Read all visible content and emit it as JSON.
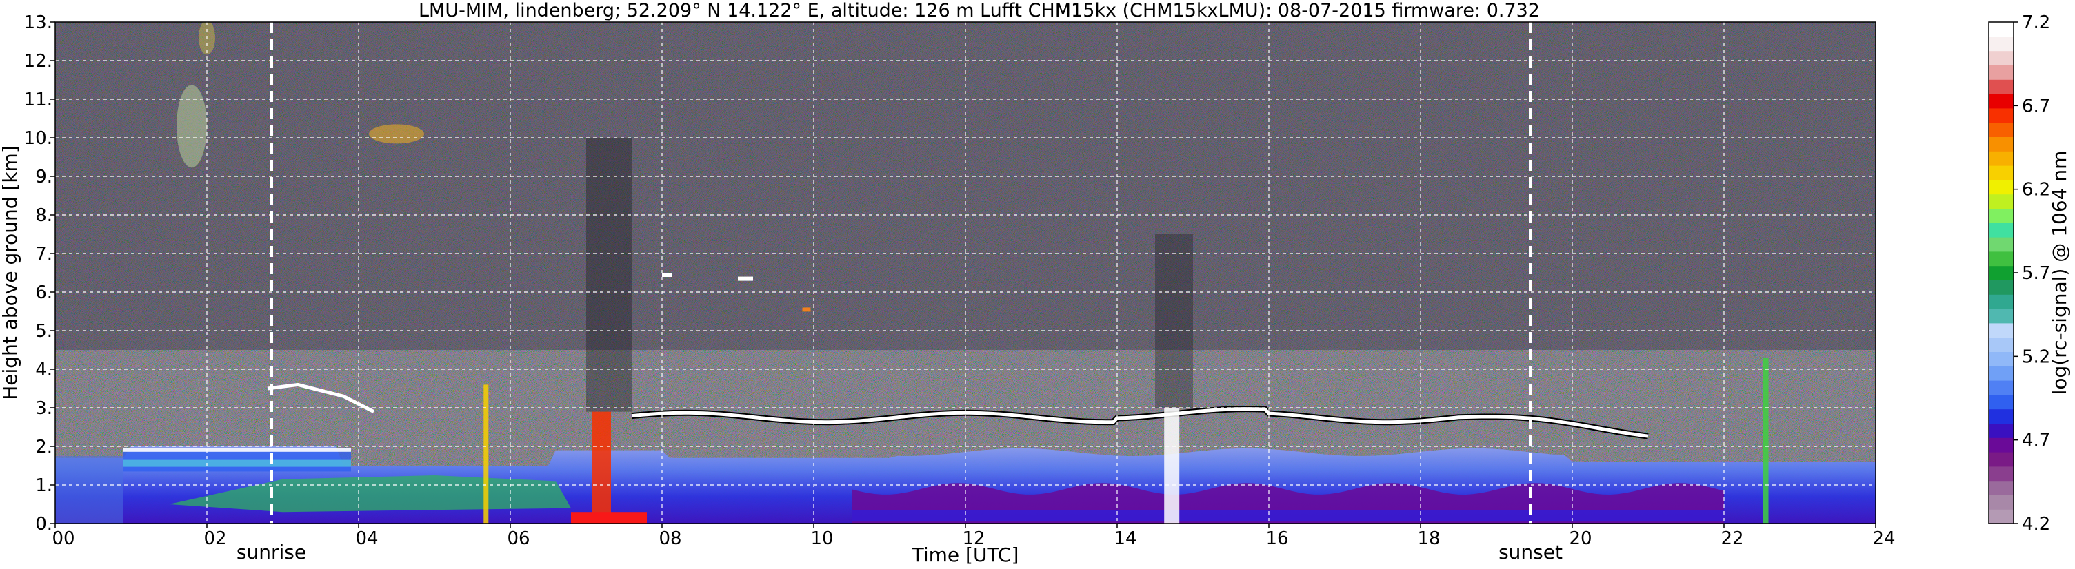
{
  "chart_data": {
    "type": "heatmap",
    "title": "LMU-MIM, lindenberg; 52.209° N 14.122° E, altitude: 126 m    Lufft CHM15kx (CHM15kxLMU): 08-07-2015    firmware: 0.732",
    "xlabel": "Time [UTC]",
    "ylabel": "Height above ground [km]",
    "x_unit": "hours UTC",
    "xlim": [
      0,
      24
    ],
    "ylim": [
      0,
      13
    ],
    "x_ticks": [
      0,
      2,
      4,
      6,
      8,
      10,
      12,
      14,
      16,
      18,
      20,
      22,
      24
    ],
    "x_tick_labels": [
      "00",
      "02",
      "04",
      "06",
      "08",
      "10",
      "12",
      "14",
      "16",
      "18",
      "20",
      "22",
      "24"
    ],
    "y_ticks": [
      0,
      1,
      2,
      3,
      4,
      5,
      6,
      7,
      8,
      9,
      10,
      11,
      12,
      13
    ],
    "y_tick_labels": [
      "0.",
      "1.",
      "2.",
      "3.",
      "4.",
      "5.",
      "6.",
      "7.",
      "8.",
      "9.",
      "10.",
      "11.",
      "12.",
      "13."
    ],
    "grid": true,
    "events": [
      {
        "label": "sunrise",
        "time": 2.85
      },
      {
        "label": "sunset",
        "time": 19.45
      }
    ],
    "colorbar": {
      "label": "log(rc-signal) @ 1064 nm",
      "range": [
        4.2,
        7.2
      ],
      "tick_values": [
        4.2,
        4.7,
        5.2,
        5.7,
        6.2,
        6.7,
        7.2
      ],
      "tick_labels": [
        "4.2",
        "4.7",
        "5.2",
        "5.7",
        "6.2",
        "6.7",
        "7.2"
      ],
      "colors": [
        "#b49ab4",
        "#a888a8",
        "#9a6a9c",
        "#8a3e8e",
        "#7a1a86",
        "#6a0a98",
        "#3a10c0",
        "#2030e0",
        "#3060f0",
        "#5080f4",
        "#70a0f6",
        "#90b8f8",
        "#a8c8f8",
        "#c0d8fa",
        "#50b8b0",
        "#30a890",
        "#209860",
        "#10a030",
        "#40c040",
        "#70d870",
        "#40e0a0",
        "#80f060",
        "#c0f020",
        "#f0f000",
        "#f8d000",
        "#f8b000",
        "#f89000",
        "#f86000",
        "#f83000",
        "#e80000",
        "#e05050",
        "#e8a0a0",
        "#f0d0d0",
        "#f8f0f0",
        "#ffffff"
      ]
    },
    "features": [
      {
        "name": "boundary layer aerosol",
        "t_start": 0,
        "t_end": 24,
        "top_km": 1.9
      },
      {
        "name": "morning residual layer",
        "t_start": 0.9,
        "t_end": 3.8,
        "top_km": 2.0
      },
      {
        "name": "convective boundary layer top",
        "t_start": 7.5,
        "t_end": 20.0,
        "top_km": 2.9
      },
      {
        "name": "elevated aerosol layer",
        "t_start": 2.8,
        "t_end": 4.2,
        "top_km": 3.6
      },
      {
        "name": "cirrus",
        "t_start": 1.3,
        "t_end": 5.3,
        "top_km": 12.8
      },
      {
        "name": "cloud",
        "t_start": 14.5,
        "t_end": 15.0,
        "top_km": 3.0
      },
      {
        "name": "cloud",
        "t_start": 22.4,
        "t_end": 22.7,
        "top_km": 4.4
      },
      {
        "name": "cloud",
        "t_start": 7.0,
        "t_end": 7.6,
        "top_km": 3.0
      },
      {
        "name": "cloud",
        "t_start": 5.6,
        "t_end": 5.8,
        "top_km": 3.6
      }
    ]
  }
}
